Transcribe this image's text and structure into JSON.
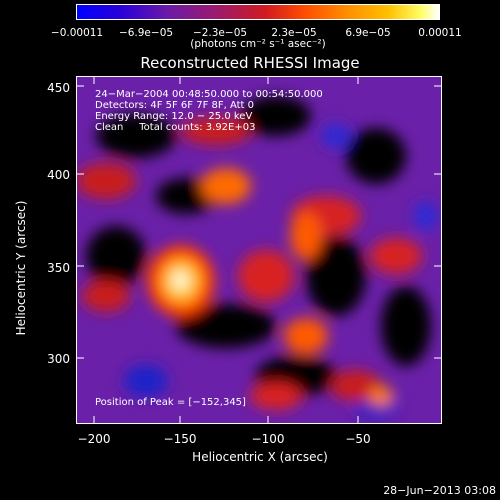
{
  "colorbar": {
    "ticks": [
      "−0.00011",
      "−6.9e−05",
      "−2.3e−05",
      "2.3e−05",
      "6.9e−05",
      "0.00011"
    ],
    "units": "(photons cm⁻² s⁻¹ asec⁻²)"
  },
  "chart_data": {
    "type": "heatmap",
    "title": "Reconstructed RHESSI Image",
    "xlabel": "Heliocentric X (arcsec)",
    "ylabel": "Heliocentric Y (arcsec)",
    "xlim": [
      -212,
      -16
    ],
    "ylim": [
      264,
      458
    ],
    "xticks": [
      "−200",
      "−150",
      "−100",
      "−50"
    ],
    "yticks": [
      "450",
      "400",
      "350",
      "300"
    ],
    "color_range": [
      -0.00011,
      0.00011
    ],
    "colormap": "blue-purple-red-orange-yellow-white",
    "annotations": {
      "time": "24−Mar−2004 00:48:50.000 to 00:54:50.000",
      "detectors": "Detectors: 4F 5F 6F 7F 8F, Att 0",
      "energy": "Energy Range: 12.0 − 25.0 keV",
      "clean": "Clean     Total counts: 3.92E+03",
      "peak": "Position of Peak = [−152,345]"
    },
    "peak": {
      "x": -152,
      "y": 345
    }
  },
  "footer": "28−Jun−2013 03:08"
}
